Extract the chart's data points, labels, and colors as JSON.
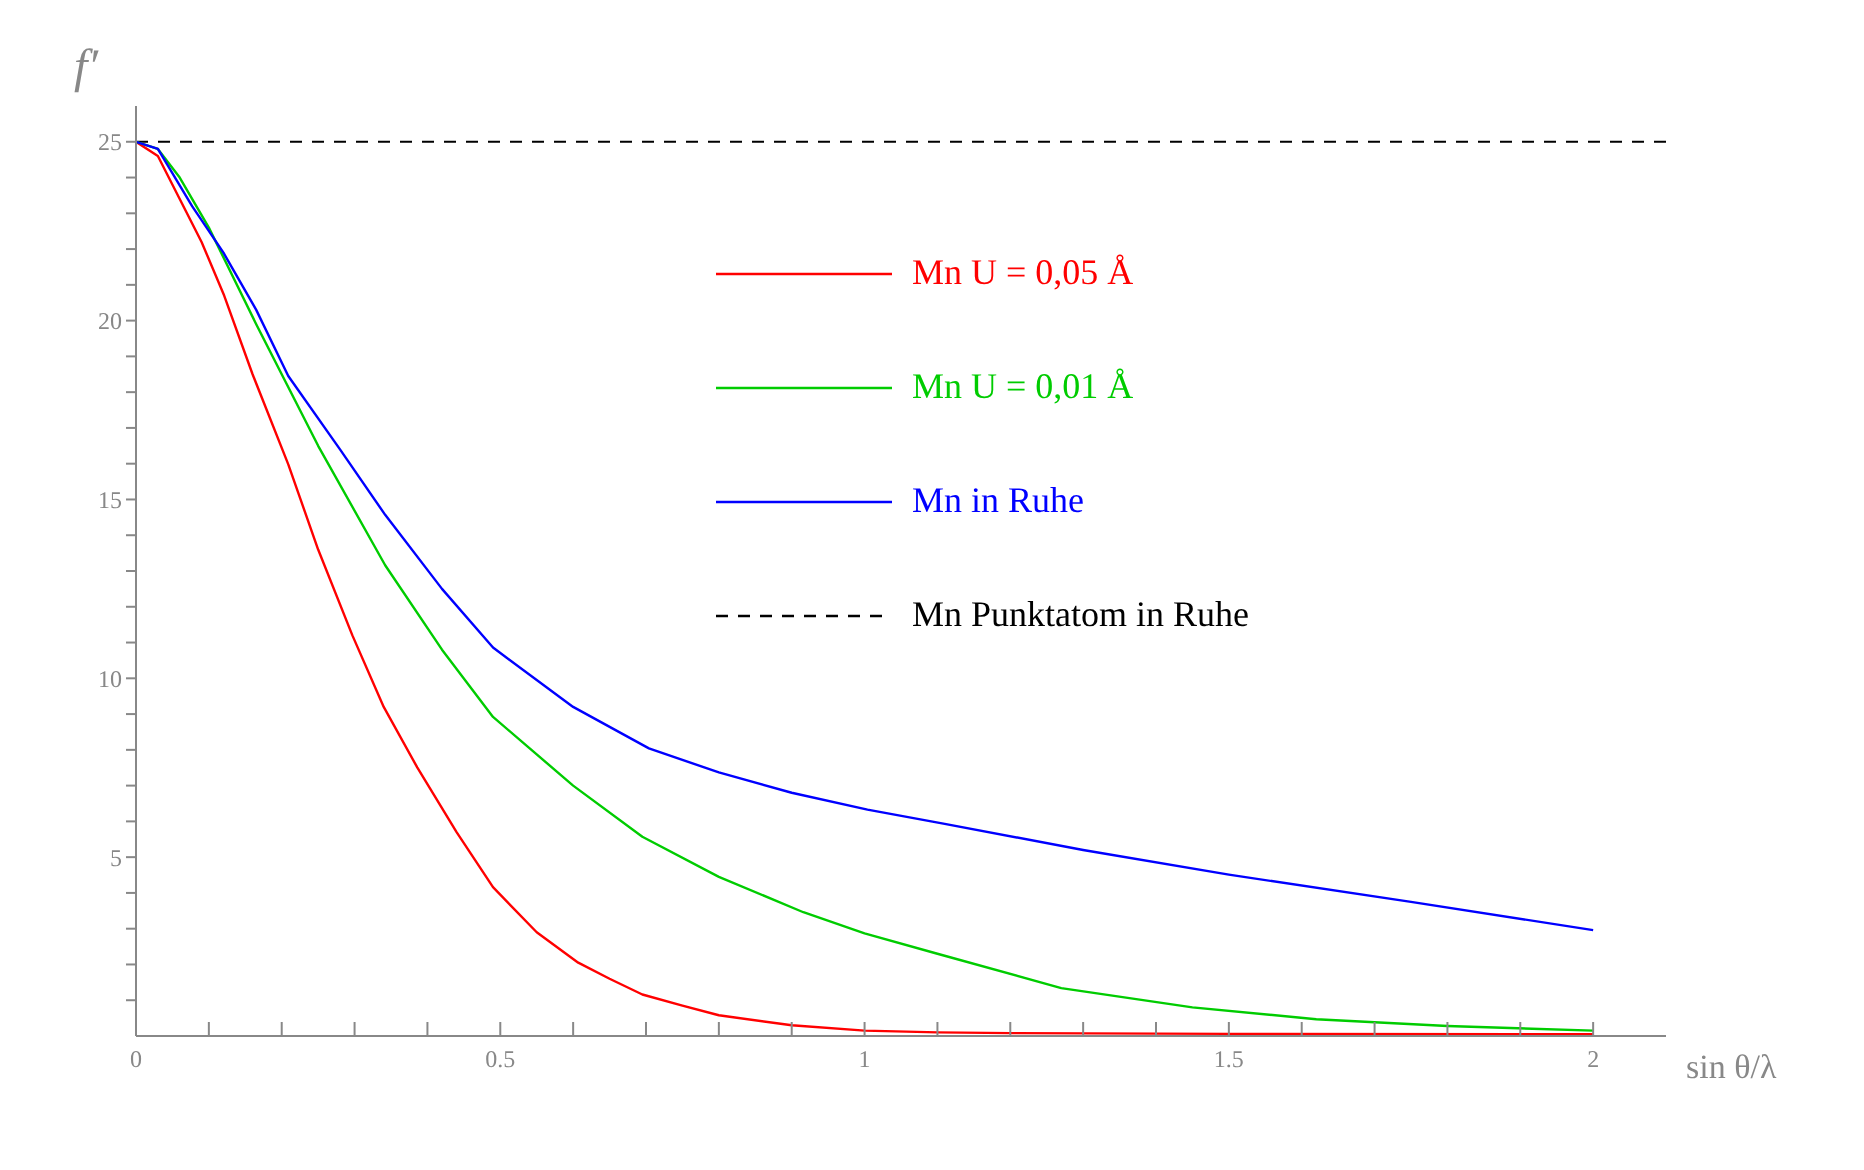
{
  "chart_data": {
    "type": "line",
    "xlabel": "sin θ/λ",
    "ylabel": "f′",
    "xlim": [
      0,
      2.1
    ],
    "ylim": [
      0,
      26
    ],
    "xticks": [
      {
        "value": 0,
        "label": "0"
      },
      {
        "value": 0.1,
        "label": null
      },
      {
        "value": 0.2,
        "label": null
      },
      {
        "value": 0.3,
        "label": null
      },
      {
        "value": 0.4,
        "label": null
      },
      0.5,
      {
        "value": 0.6,
        "label": null
      },
      {
        "value": 0.7,
        "label": null
      },
      {
        "value": 0.8,
        "label": null
      },
      {
        "value": 0.9,
        "label": null
      },
      1,
      {
        "value": 1.1,
        "label": null
      },
      {
        "value": 1.2,
        "label": null
      },
      {
        "value": 1.3,
        "label": null
      },
      {
        "value": 1.4,
        "label": null
      },
      1.5,
      {
        "value": 1.6,
        "label": null
      },
      {
        "value": 1.7,
        "label": null
      },
      {
        "value": 1.8,
        "label": null
      },
      {
        "value": 1.9,
        "label": null
      },
      2
    ],
    "yticks": [
      {
        "value": 1,
        "label": null
      },
      {
        "value": 2,
        "label": null
      },
      {
        "value": 3,
        "label": null
      },
      {
        "value": 4,
        "label": null
      },
      5,
      {
        "value": 6,
        "label": null
      },
      {
        "value": 7,
        "label": null
      },
      {
        "value": 8,
        "label": null
      },
      {
        "value": 9,
        "label": null
      },
      10,
      {
        "value": 11,
        "label": null
      },
      {
        "value": 12,
        "label": null
      },
      {
        "value": 13,
        "label": null
      },
      {
        "value": 14,
        "label": null
      },
      15,
      {
        "value": 16,
        "label": null
      },
      {
        "value": 17,
        "label": null
      },
      {
        "value": 18,
        "label": null
      },
      {
        "value": 19,
        "label": null
      },
      20,
      {
        "value": 21,
        "label": null
      },
      {
        "value": 22,
        "label": null
      },
      {
        "value": 23,
        "label": null
      },
      {
        "value": 24,
        "label": null
      },
      25
    ],
    "grid": false,
    "legend": "top",
    "line_style": "solid",
    "marker": "none",
    "series": [
      {
        "name": "Mn U = 0,05 Å",
        "color": "#ff0000",
        "x": [
          0,
          0.03,
          0.06,
          0.09,
          0.121,
          0.16,
          0.209,
          0.25,
          0.297,
          0.34,
          0.386,
          0.44,
          0.49,
          0.55,
          0.607,
          0.65,
          0.695,
          0.75,
          0.8,
          0.9,
          1.0,
          1.1,
          1.2,
          1.5,
          2.0
        ],
        "values": [
          25,
          24.6,
          23.4,
          22.2,
          20.7,
          18.5,
          15.98,
          13.6,
          11.2,
          9.2,
          7.51,
          5.7,
          4.16,
          2.9,
          2.05,
          1.6,
          1.16,
          0.85,
          0.58,
          0.3,
          0.15,
          0.1,
          0.08,
          0.06,
          0.05
        ]
      },
      {
        "name": "Mn U = 0,01 Å",
        "color": "#00cc00",
        "x": [
          0,
          0.03,
          0.06,
          0.1,
          0.165,
          0.25,
          0.342,
          0.42,
          0.49,
          0.6,
          0.695,
          0.8,
          0.916,
          1.0,
          1.1,
          1.27,
          1.45,
          1.62,
          1.8,
          2.0
        ],
        "values": [
          25,
          24.8,
          24.0,
          22.6,
          19.9,
          16.5,
          13.16,
          10.8,
          8.92,
          7.0,
          5.57,
          4.45,
          3.46,
          2.87,
          2.3,
          1.34,
          0.8,
          0.47,
          0.28,
          0.15
        ]
      },
      {
        "name": "Mn in Ruhe",
        "color": "#0000ff",
        "x": [
          0,
          0.03,
          0.077,
          0.12,
          0.165,
          0.209,
          0.28,
          0.342,
          0.42,
          0.49,
          0.6,
          0.704,
          0.8,
          0.9,
          1.004,
          1.11,
          1.3,
          1.5,
          1.75,
          2.0
        ],
        "values": [
          25,
          24.8,
          23.2,
          21.9,
          20.3,
          18.45,
          16.4,
          14.57,
          12.5,
          10.86,
          9.2,
          8.04,
          7.37,
          6.8,
          6.33,
          5.93,
          5.2,
          4.51,
          3.75,
          2.96
        ]
      }
    ],
    "ref_lines": [
      {
        "axis": "y",
        "value": 25,
        "label": "Mn Punktatom in Ruhe",
        "color": "#000000",
        "line_style": "dashed"
      }
    ]
  }
}
